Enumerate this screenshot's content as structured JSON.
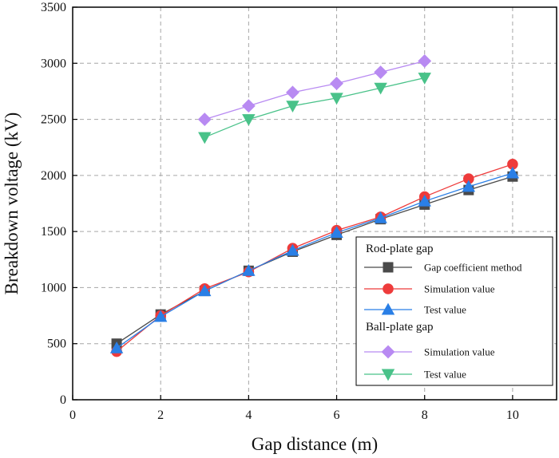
{
  "chart_data": {
    "type": "line",
    "title": "",
    "xlabel": "Gap distance (m)",
    "ylabel": "Breakdown voltage (kV)",
    "xlim": [
      0,
      11
    ],
    "ylim": [
      0,
      3500
    ],
    "xticks": [
      0,
      2,
      4,
      6,
      8,
      10
    ],
    "yticks": [
      0,
      500,
      1000,
      1500,
      2000,
      2500,
      3000,
      3500
    ],
    "grid": true,
    "legend_position": "lower-right",
    "groups": [
      {
        "title": "Rod-plate gap",
        "series": [
          {
            "name": "Gap coefficient method",
            "marker": "square",
            "color": "#4a4a4a",
            "x": [
              1,
              2,
              3,
              4,
              5,
              6,
              7,
              8,
              9,
              10
            ],
            "y": [
              500,
              760,
              970,
              1150,
              1320,
              1470,
              1610,
              1740,
              1870,
              1990
            ]
          },
          {
            "name": "Simulation value",
            "marker": "circle",
            "color": "#ee3b3b",
            "x": [
              1,
              2,
              3,
              4,
              5,
              6,
              7,
              8,
              9,
              10
            ],
            "y": [
              430,
              750,
              990,
              1140,
              1350,
              1510,
              1630,
              1810,
              1970,
              2100
            ]
          },
          {
            "name": "Test value",
            "marker": "triangle-up",
            "color": "#2a7fe6",
            "x": [
              1,
              2,
              3,
              4,
              5,
              6,
              7,
              8,
              9,
              10
            ],
            "y": [
              460,
              740,
              970,
              1150,
              1330,
              1490,
              1620,
              1770,
              1900,
              2020
            ]
          }
        ]
      },
      {
        "title": "Ball-plate gap",
        "series": [
          {
            "name": "Simulation value",
            "marker": "diamond",
            "color": "#b88af2",
            "x": [
              3,
              4,
              5,
              6,
              7,
              8
            ],
            "y": [
              2500,
              2620,
              2740,
              2820,
              2920,
              3020
            ]
          },
          {
            "name": "Test value",
            "marker": "triangle-down",
            "color": "#49c289",
            "x": [
              3,
              4,
              5,
              6,
              7,
              8
            ],
            "y": [
              2340,
              2500,
              2620,
              2690,
              2780,
              2870
            ]
          }
        ]
      }
    ]
  }
}
